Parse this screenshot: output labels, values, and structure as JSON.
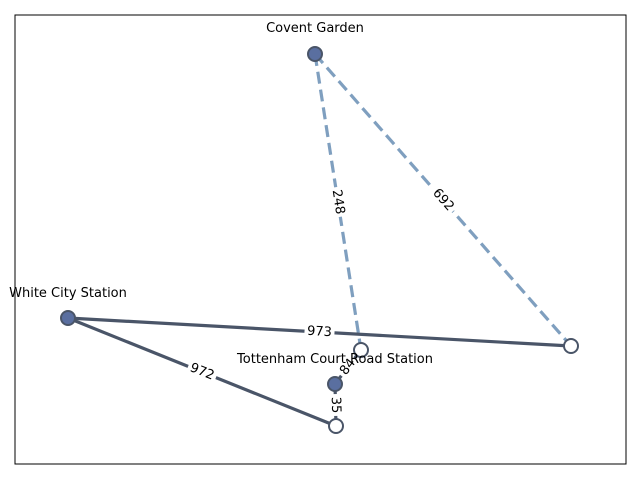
{
  "graph": {
    "nodes": [
      {
        "id": "covent",
        "label": "Covent Garden",
        "filled": true
      },
      {
        "id": "white",
        "label": "White City Station",
        "filled": true
      },
      {
        "id": "tcr",
        "label": "Tottenham Court Road Station",
        "filled": true
      },
      {
        "id": "n4",
        "label": "",
        "filled": false
      },
      {
        "id": "n5",
        "label": "",
        "filled": false
      },
      {
        "id": "n6",
        "label": "",
        "filled": false
      }
    ],
    "edges": [
      {
        "from": "covent",
        "to": "n5",
        "label": "248",
        "style": "dashed"
      },
      {
        "from": "covent",
        "to": "n4",
        "label": "692",
        "style": "dashed"
      },
      {
        "from": "white",
        "to": "n4",
        "label": "973",
        "style": "solid"
      },
      {
        "from": "white",
        "to": "n6",
        "label": "972",
        "style": "solid"
      },
      {
        "from": "tcr",
        "to": "n5",
        "label": "84",
        "style": "solid"
      },
      {
        "from": "tcr",
        "to": "n6",
        "label": "35",
        "style": "solid"
      }
    ],
    "colors": {
      "solid_edge": "#4a5568",
      "dashed_edge": "#7f9fbf",
      "filled_node": "#5a6fa0",
      "node_outline": "#4a5568",
      "open_node_fill": "#ffffff"
    }
  }
}
